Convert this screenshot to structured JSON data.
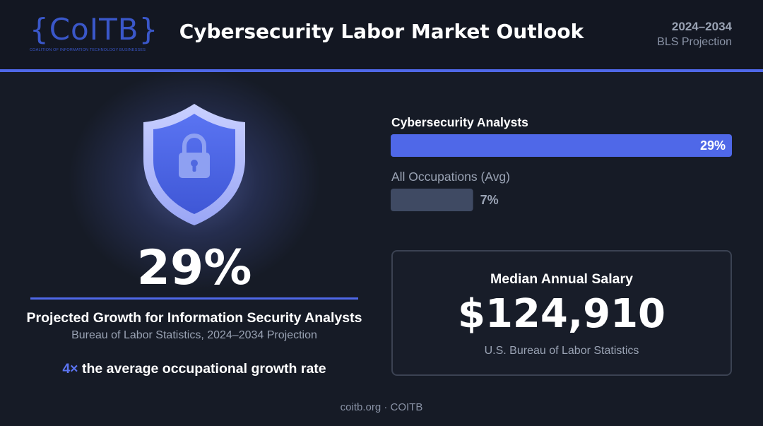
{
  "header": {
    "logo": "{CoITB}",
    "logo_subtitle": "COALITION OF INFORMATION TECHNOLOGY BUSINESSES",
    "title": "Cybersecurity Labor Market Outlook",
    "years": "2024–2034",
    "projection": "BLS Projection"
  },
  "colors": {
    "accent": "#4f68e8",
    "secondary_bar": "#3f4a63",
    "background": "#161b26"
  },
  "hero": {
    "icon": "shield-lock-icon",
    "stat": "29%",
    "label": "Projected Growth for Information Security Analysts",
    "source": "Bureau of Labor Statistics, 2024–2034 Projection",
    "multiplier": "4×",
    "multiplier_text": " the average occupational growth rate"
  },
  "chart_data": {
    "type": "bar",
    "orientation": "horizontal",
    "categories": [
      "Cybersecurity Analysts",
      "All Occupations (Avg)"
    ],
    "values": [
      29,
      7
    ],
    "value_labels": [
      "29%",
      "7%"
    ],
    "xlim": [
      0,
      29
    ],
    "grid": false
  },
  "salary": {
    "label": "Median Annual Salary",
    "value": "$124,910",
    "source": "U.S. Bureau of Labor Statistics"
  },
  "footer": {
    "text": "coitb.org · COITB"
  }
}
